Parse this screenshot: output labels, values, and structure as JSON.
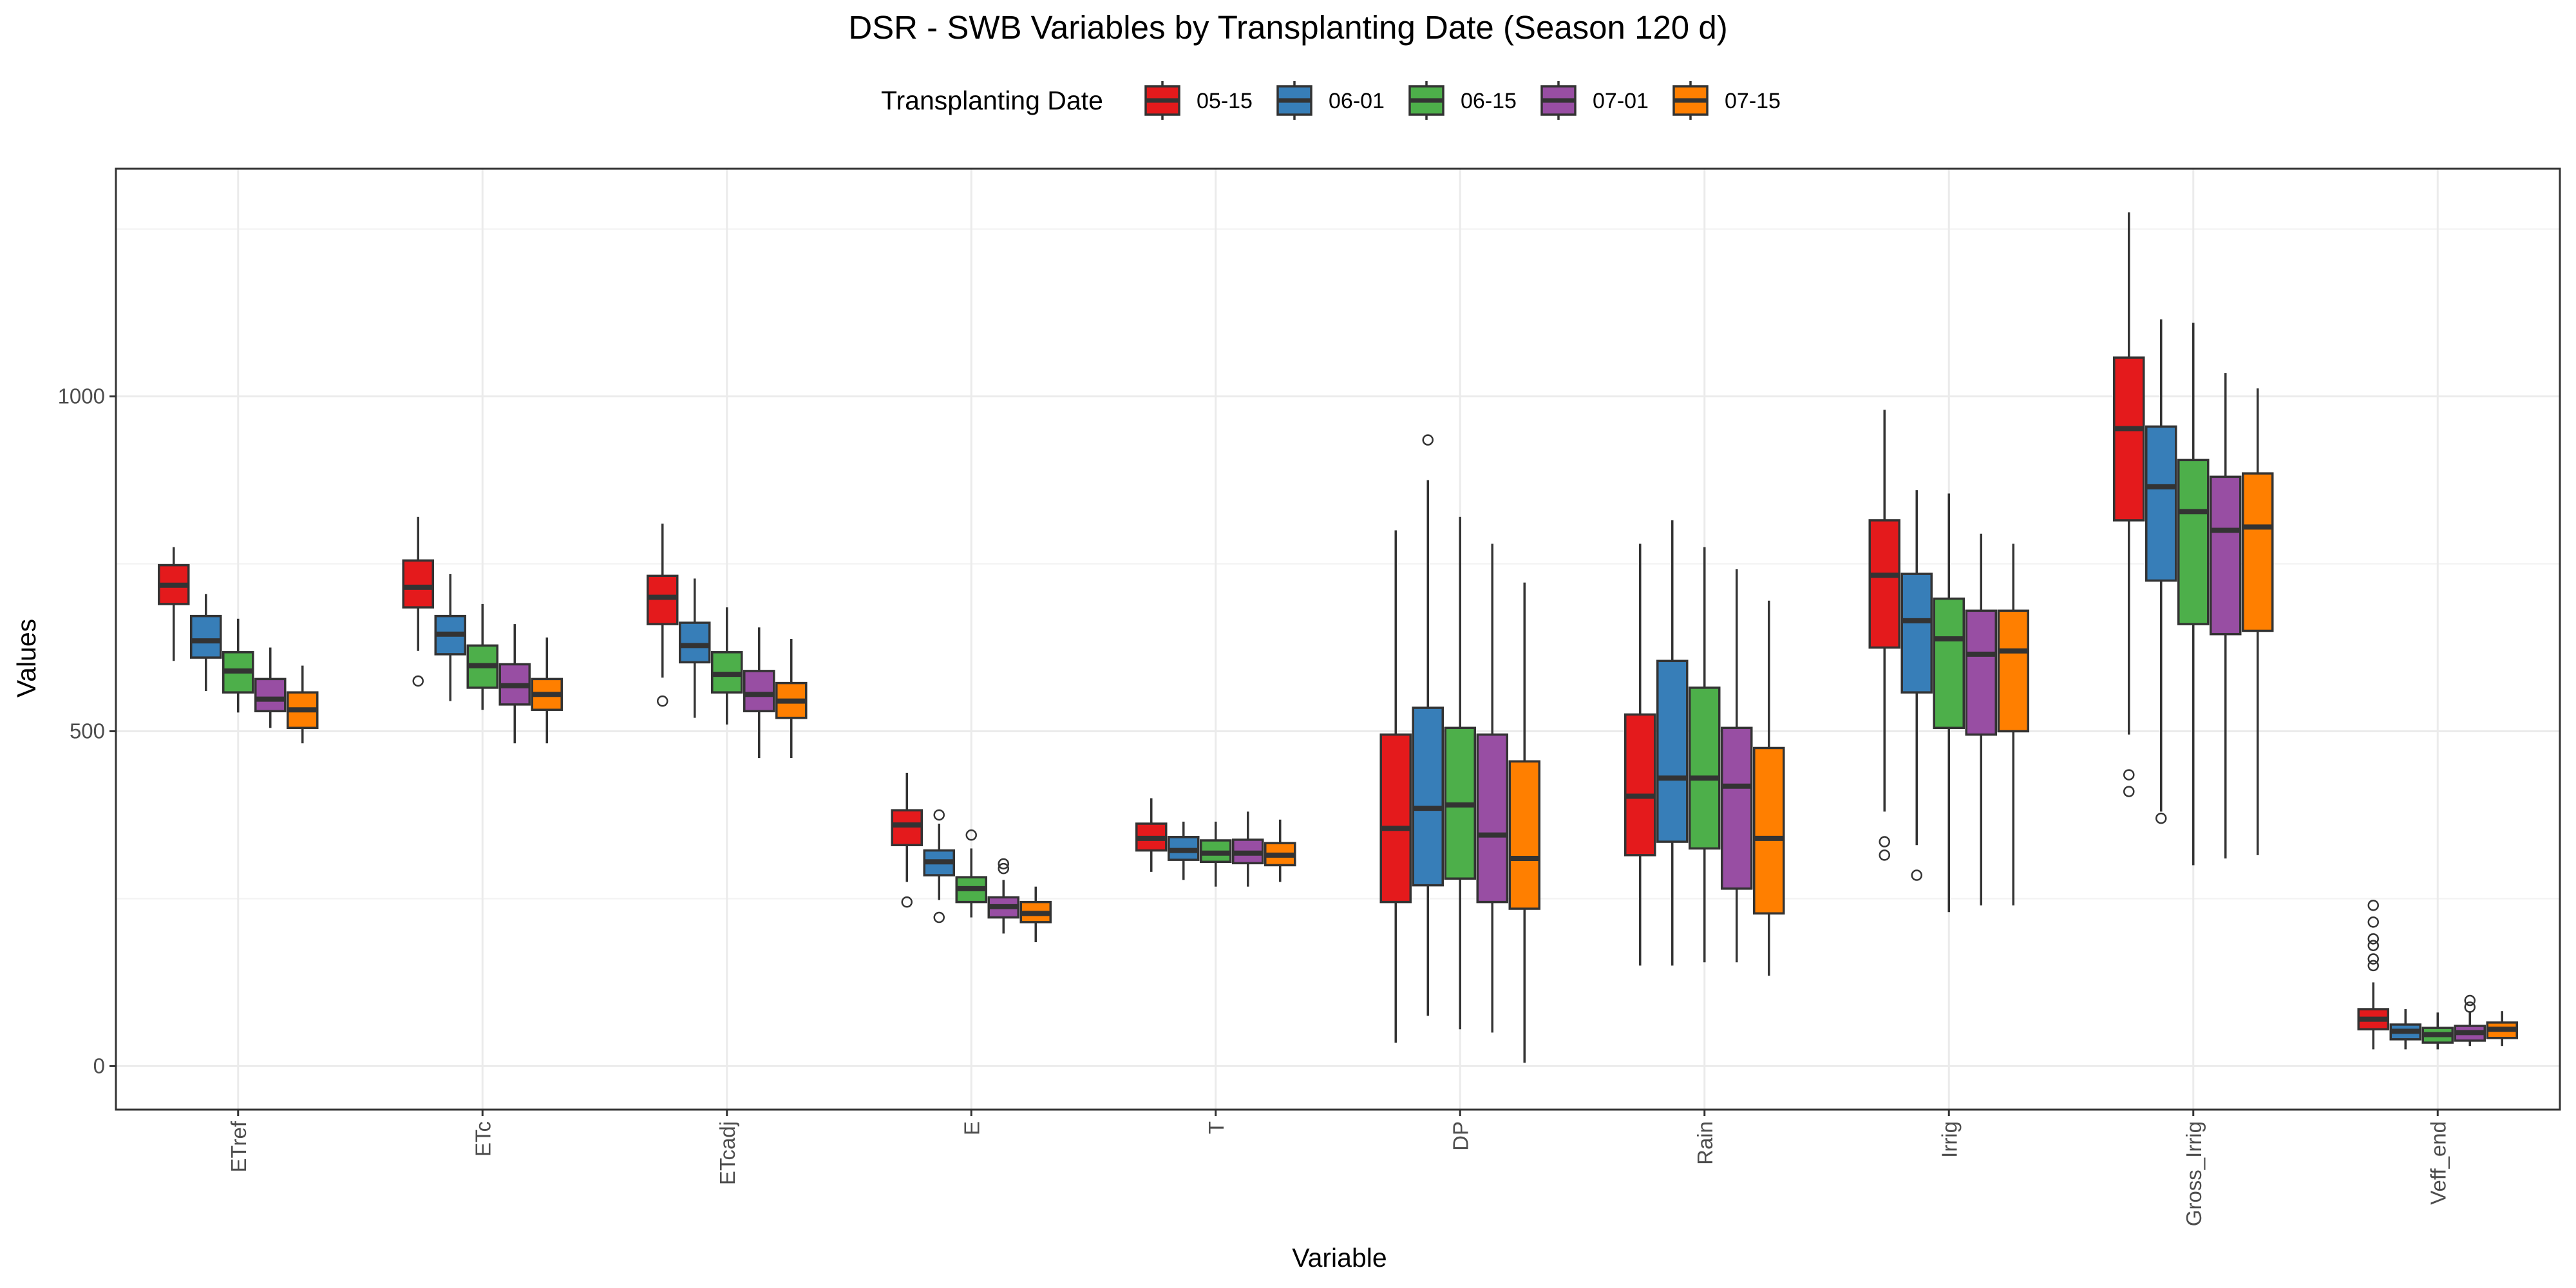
{
  "chart_data": {
    "type": "boxplot",
    "title": "DSR - SWB Variables by Transplanting Date (Season 120 d)",
    "xlabel": "Variable",
    "ylabel": "Values",
    "ylim": [
      -65,
      1340
    ],
    "yticks": [
      0,
      500,
      1000
    ],
    "grid": true,
    "legend": {
      "title": "Transplanting Date",
      "placement": "top"
    },
    "categories": [
      "ETref",
      "ETc",
      "ETcadj",
      "E",
      "T",
      "DP",
      "Rain",
      "Irrig",
      "Gross_Irrig",
      "Veff_end"
    ],
    "series": [
      {
        "name": "05-15",
        "color": "#e41a1c",
        "boxes": [
          {
            "lw": 605,
            "q1": 690,
            "med": 718,
            "q3": 748,
            "uw": 775,
            "out": []
          },
          {
            "lw": 620,
            "q1": 685,
            "med": 715,
            "q3": 755,
            "uw": 820,
            "out": [
              575
            ]
          },
          {
            "lw": 580,
            "q1": 660,
            "med": 700,
            "q3": 732,
            "uw": 810,
            "out": [
              545
            ]
          },
          {
            "lw": 275,
            "q1": 330,
            "med": 360,
            "q3": 382,
            "uw": 438,
            "out": [
              245
            ]
          },
          {
            "lw": 290,
            "q1": 322,
            "med": 340,
            "q3": 362,
            "uw": 400,
            "out": []
          },
          {
            "lw": 35,
            "q1": 245,
            "med": 355,
            "q3": 495,
            "uw": 800,
            "out": []
          },
          {
            "lw": 150,
            "q1": 315,
            "med": 403,
            "q3": 525,
            "uw": 780,
            "out": []
          },
          {
            "lw": 380,
            "q1": 625,
            "med": 733,
            "q3": 815,
            "uw": 980,
            "out": [
              335,
              315
            ]
          },
          {
            "lw": 495,
            "q1": 815,
            "med": 952,
            "q3": 1058,
            "uw": 1275,
            "out": [
              435,
              410
            ]
          },
          {
            "lw": 25,
            "q1": 55,
            "med": 70,
            "q3": 85,
            "uw": 125,
            "out": [
              240,
              215,
              190,
              180,
              160,
              150
            ]
          }
        ]
      },
      {
        "name": "06-01",
        "color": "#377eb8",
        "boxes": [
          {
            "lw": 560,
            "q1": 610,
            "med": 635,
            "q3": 672,
            "uw": 705,
            "out": []
          },
          {
            "lw": 545,
            "q1": 615,
            "med": 645,
            "q3": 672,
            "uw": 735,
            "out": []
          },
          {
            "lw": 520,
            "q1": 603,
            "med": 628,
            "q3": 662,
            "uw": 728,
            "out": []
          },
          {
            "lw": 248,
            "q1": 285,
            "med": 305,
            "q3": 322,
            "uw": 362,
            "out": [
              375,
              222
            ]
          },
          {
            "lw": 278,
            "q1": 308,
            "med": 322,
            "q3": 342,
            "uw": 365,
            "out": []
          },
          {
            "lw": 75,
            "q1": 270,
            "med": 385,
            "q3": 535,
            "uw": 875,
            "out": [
              935
            ]
          },
          {
            "lw": 150,
            "q1": 335,
            "med": 430,
            "q3": 605,
            "uw": 815,
            "out": []
          },
          {
            "lw": 330,
            "q1": 558,
            "med": 665,
            "q3": 735,
            "uw": 860,
            "out": [
              285
            ]
          },
          {
            "lw": 380,
            "q1": 725,
            "med": 865,
            "q3": 955,
            "uw": 1115,
            "out": [
              370
            ]
          },
          {
            "lw": 25,
            "q1": 40,
            "med": 52,
            "q3": 62,
            "uw": 85,
            "out": []
          }
        ]
      },
      {
        "name": "06-15",
        "color": "#4daf4a",
        "boxes": [
          {
            "lw": 528,
            "q1": 558,
            "med": 590,
            "q3": 618,
            "uw": 668,
            "out": []
          },
          {
            "lw": 532,
            "q1": 565,
            "med": 598,
            "q3": 628,
            "uw": 690,
            "out": []
          },
          {
            "lw": 510,
            "q1": 558,
            "med": 585,
            "q3": 618,
            "uw": 685,
            "out": []
          },
          {
            "lw": 222,
            "q1": 245,
            "med": 265,
            "q3": 282,
            "uw": 325,
            "out": [
              345
            ]
          },
          {
            "lw": 268,
            "q1": 305,
            "med": 318,
            "q3": 337,
            "uw": 365,
            "out": []
          },
          {
            "lw": 55,
            "q1": 280,
            "med": 390,
            "q3": 505,
            "uw": 820,
            "out": []
          },
          {
            "lw": 155,
            "q1": 325,
            "med": 430,
            "q3": 565,
            "uw": 775,
            "out": []
          },
          {
            "lw": 230,
            "q1": 505,
            "med": 638,
            "q3": 698,
            "uw": 855,
            "out": []
          },
          {
            "lw": 300,
            "q1": 660,
            "med": 828,
            "q3": 905,
            "uw": 1110,
            "out": []
          },
          {
            "lw": 25,
            "q1": 35,
            "med": 47,
            "q3": 57,
            "uw": 80,
            "out": []
          }
        ]
      },
      {
        "name": "07-01",
        "color": "#984ea3",
        "boxes": [
          {
            "lw": 505,
            "q1": 530,
            "med": 548,
            "q3": 578,
            "uw": 625,
            "out": []
          },
          {
            "lw": 482,
            "q1": 540,
            "med": 568,
            "q3": 600,
            "uw": 660,
            "out": []
          },
          {
            "lw": 460,
            "q1": 530,
            "med": 555,
            "q3": 590,
            "uw": 655,
            "out": []
          },
          {
            "lw": 198,
            "q1": 222,
            "med": 238,
            "q3": 252,
            "uw": 278,
            "out": [
              302,
              295
            ]
          },
          {
            "lw": 268,
            "q1": 303,
            "med": 318,
            "q3": 338,
            "uw": 380,
            "out": []
          },
          {
            "lw": 50,
            "q1": 245,
            "med": 345,
            "q3": 495,
            "uw": 780,
            "out": []
          },
          {
            "lw": 155,
            "q1": 265,
            "med": 418,
            "q3": 505,
            "uw": 742,
            "out": []
          },
          {
            "lw": 240,
            "q1": 495,
            "med": 615,
            "q3": 680,
            "uw": 795,
            "out": []
          },
          {
            "lw": 310,
            "q1": 645,
            "med": 800,
            "q3": 880,
            "uw": 1035,
            "out": []
          },
          {
            "lw": 30,
            "q1": 38,
            "med": 50,
            "q3": 60,
            "uw": 80,
            "out": [
              98,
              88
            ]
          }
        ]
      },
      {
        "name": "07-15",
        "color": "#ff7f00",
        "boxes": [
          {
            "lw": 482,
            "q1": 505,
            "med": 532,
            "q3": 558,
            "uw": 598,
            "out": []
          },
          {
            "lw": 482,
            "q1": 532,
            "med": 555,
            "q3": 578,
            "uw": 640,
            "out": []
          },
          {
            "lw": 460,
            "q1": 520,
            "med": 545,
            "q3": 572,
            "uw": 638,
            "out": []
          },
          {
            "lw": 185,
            "q1": 215,
            "med": 228,
            "q3": 245,
            "uw": 268,
            "out": []
          },
          {
            "lw": 275,
            "q1": 300,
            "med": 315,
            "q3": 333,
            "uw": 368,
            "out": []
          },
          {
            "lw": 5,
            "q1": 235,
            "med": 310,
            "q3": 455,
            "uw": 722,
            "out": []
          },
          {
            "lw": 135,
            "q1": 228,
            "med": 340,
            "q3": 475,
            "uw": 695,
            "out": []
          },
          {
            "lw": 240,
            "q1": 500,
            "med": 620,
            "q3": 680,
            "uw": 780,
            "out": []
          },
          {
            "lw": 315,
            "q1": 650,
            "med": 805,
            "q3": 885,
            "uw": 1012,
            "out": []
          },
          {
            "lw": 30,
            "q1": 42,
            "med": 55,
            "q3": 65,
            "uw": 82,
            "out": []
          }
        ]
      }
    ]
  }
}
